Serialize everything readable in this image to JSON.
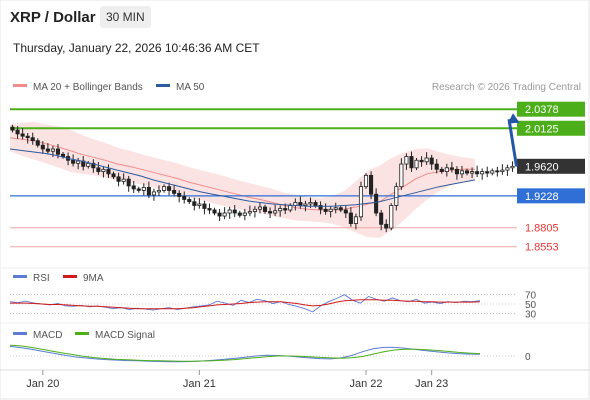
{
  "header": {
    "pair": "XRP / Dollar",
    "timeframe": "30 MIN",
    "datetime": "Thursday, January 22, 2026 10:46:36 AM CET"
  },
  "chart_data": [
    {
      "type": "candlestick",
      "name": "price",
      "legend": [
        {
          "label": "MA 20 + Bollinger Bands",
          "color": "#f08c8c"
        },
        {
          "label": "MA 50",
          "color": "#2e5a9e"
        }
      ],
      "copyright": "Research © 2026 Trading Central",
      "ylim": [
        1.835,
        2.05
      ],
      "levels": [
        {
          "value": 2.0378,
          "label": "2.0378",
          "color": "#4caf1a",
          "role": "resistance"
        },
        {
          "value": 2.0125,
          "label": "2.0125",
          "color": "#4caf1a",
          "role": "resistance"
        },
        {
          "value": 1.962,
          "label": "1.9620",
          "color": "#333333",
          "role": "current"
        },
        {
          "value": 1.9228,
          "label": "1.9228",
          "color": "#2f6fd6",
          "role": "pivot"
        },
        {
          "value": 1.8805,
          "label": "1.8805",
          "color": "#e53935",
          "role": "support"
        },
        {
          "value": 1.8553,
          "label": "1.8553",
          "color": "#e53935",
          "role": "support"
        }
      ],
      "arrow": {
        "from": 1.962,
        "to": 2.0378,
        "direction": "up"
      },
      "closes": [
        2.01,
        2.005,
        2.002,
        2.0,
        1.996,
        1.99,
        1.985,
        1.982,
        1.985,
        1.978,
        1.975,
        1.97,
        1.966,
        1.969,
        1.962,
        1.966,
        1.96,
        1.955,
        1.958,
        1.952,
        1.948,
        1.942,
        1.945,
        1.936,
        1.932,
        1.93,
        1.934,
        1.924,
        1.928,
        1.93,
        1.935,
        1.93,
        1.926,
        1.922,
        1.918,
        1.915,
        1.91,
        1.912,
        1.906,
        1.904,
        1.9,
        1.896,
        1.9,
        1.904,
        1.9,
        1.897,
        1.9,
        1.902,
        1.905,
        1.908,
        1.902,
        1.9,
        1.903,
        1.906,
        1.904,
        1.91,
        1.914,
        1.91,
        1.912,
        1.914,
        1.91,
        1.905,
        1.902,
        1.905,
        1.907,
        1.904,
        1.9,
        1.886,
        1.895,
        1.935,
        1.95,
        1.925,
        1.9,
        1.885,
        1.88,
        1.91,
        1.935,
        1.965,
        1.975,
        1.96,
        1.97,
        1.968,
        1.973,
        1.965,
        1.958,
        1.955,
        1.96,
        1.958,
        1.952,
        1.956,
        1.953,
        1.955,
        1.952,
        1.955,
        1.953,
        1.956,
        1.955,
        1.957,
        1.96,
        1.962
      ],
      "ma20": [
        2.0,
        1.998,
        1.996,
        1.992,
        1.988,
        1.983,
        1.978,
        1.974,
        1.97,
        1.965,
        1.962,
        1.958,
        1.954,
        1.95,
        1.946,
        1.941,
        1.937,
        1.933,
        1.929,
        1.925,
        1.921,
        1.918,
        1.914,
        1.91,
        1.907,
        1.905,
        1.904,
        1.904,
        1.905,
        1.908,
        1.912,
        1.915,
        1.925,
        1.935,
        1.945,
        1.952,
        1.955,
        1.957,
        1.958,
        1.958
      ],
      "ma50": [
        1.985,
        1.983,
        1.981,
        1.979,
        1.976,
        1.972,
        1.969,
        1.965,
        1.961,
        1.957,
        1.953,
        1.949,
        1.944,
        1.94,
        1.936,
        1.932,
        1.928,
        1.925,
        1.922,
        1.919,
        1.916,
        1.914,
        1.912,
        1.911,
        1.91,
        1.909,
        1.909,
        1.909,
        1.91,
        1.911,
        1.913,
        1.915,
        1.919,
        1.923,
        1.927,
        1.931,
        1.935,
        1.938,
        1.941,
        1.944
      ],
      "bb_width": [
        0.018,
        0.022,
        0.025,
        0.026,
        0.027,
        0.028,
        0.026,
        0.024,
        0.023,
        0.022,
        0.021,
        0.02,
        0.02,
        0.02,
        0.02,
        0.02,
        0.02,
        0.02,
        0.02,
        0.019,
        0.019,
        0.018,
        0.018,
        0.017,
        0.017,
        0.016,
        0.016,
        0.018,
        0.024,
        0.034,
        0.044,
        0.048,
        0.048,
        0.045,
        0.04,
        0.034,
        0.026,
        0.02,
        0.016,
        0.014
      ]
    },
    {
      "type": "line",
      "name": "RSI",
      "legend": [
        {
          "label": "RSI",
          "color": "#5b7bd5"
        },
        {
          "label": "9MA",
          "color": "#d11a1a"
        }
      ],
      "levels": [
        {
          "value": 70,
          "label": "70"
        },
        {
          "value": 50,
          "label": "50"
        },
        {
          "value": 30,
          "label": "30"
        }
      ],
      "rsi": [
        55,
        53,
        56,
        52,
        50,
        48,
        51,
        46,
        45,
        47,
        44,
        46,
        43,
        40,
        42,
        38,
        41,
        39,
        37,
        40,
        42,
        38,
        41,
        44,
        46,
        48,
        56,
        52,
        47,
        58,
        53,
        60,
        57,
        51,
        55,
        49,
        45,
        40,
        33,
        46,
        55,
        62,
        70,
        58,
        52,
        66,
        60,
        56,
        63,
        57,
        55,
        60,
        52,
        54,
        51,
        55,
        53,
        56,
        55,
        57
      ],
      "ma9": [
        52,
        52,
        52,
        51,
        50,
        49,
        49,
        48,
        47,
        46,
        45,
        45,
        44,
        43,
        42,
        41,
        40,
        40,
        40,
        40,
        40,
        40,
        41,
        42,
        44,
        46,
        48,
        49,
        50,
        51,
        53,
        54,
        55,
        55,
        55,
        53,
        51,
        48,
        46,
        47,
        50,
        54,
        57,
        58,
        59,
        59,
        59,
        58,
        58,
        57,
        56,
        56,
        55,
        55,
        54,
        54,
        54,
        54,
        54,
        55
      ]
    },
    {
      "type": "line",
      "name": "MACD",
      "legend": [
        {
          "label": "MACD",
          "color": "#5b7bd5"
        },
        {
          "label": "MACD Signal",
          "color": "#4caf1a"
        }
      ],
      "zero_label": "0",
      "macd": [
        0.004,
        0.0035,
        0.0028,
        0.002,
        0.0012,
        0.0004,
        -0.0003,
        -0.0008,
        -0.0012,
        -0.0015,
        -0.0017,
        -0.0019,
        -0.002,
        -0.0022,
        -0.0023,
        -0.0024,
        -0.0024,
        -0.0023,
        -0.0021,
        -0.0018,
        -0.0014,
        -0.001,
        -0.0005,
        0.0,
        0.0003,
        0.0002,
        0.0,
        -0.0004,
        -0.0008,
        -0.0011,
        -0.0012,
        -0.0008,
        0.0002,
        0.0018,
        0.003,
        0.0036,
        0.0036,
        0.0032,
        0.0027,
        0.0022,
        0.0017,
        0.0013,
        0.001,
        0.0008,
        0.0007
      ],
      "signal": [
        0.0045,
        0.0042,
        0.0036,
        0.0028,
        0.002,
        0.0012,
        0.0005,
        -0.0002,
        -0.0007,
        -0.0011,
        -0.0014,
        -0.0016,
        -0.0018,
        -0.0019,
        -0.002,
        -0.0021,
        -0.0022,
        -0.0022,
        -0.0021,
        -0.002,
        -0.0018,
        -0.0015,
        -0.0011,
        -0.0007,
        -0.0003,
        0.0,
        0.0,
        -0.0001,
        -0.0003,
        -0.0006,
        -0.0008,
        -0.0009,
        -0.0007,
        -0.0002,
        0.0008,
        0.0018,
        0.0025,
        0.0028,
        0.0028,
        0.0026,
        0.0023,
        0.0019,
        0.0015,
        0.0012,
        0.001
      ]
    }
  ],
  "x_axis": {
    "ticks": [
      {
        "label": "Jan 20",
        "index": 6
      },
      {
        "label": "Jan 21",
        "index": 37
      },
      {
        "label": "Jan 22",
        "index": 70
      },
      {
        "label": "Jan 23",
        "index": 83
      }
    ]
  }
}
